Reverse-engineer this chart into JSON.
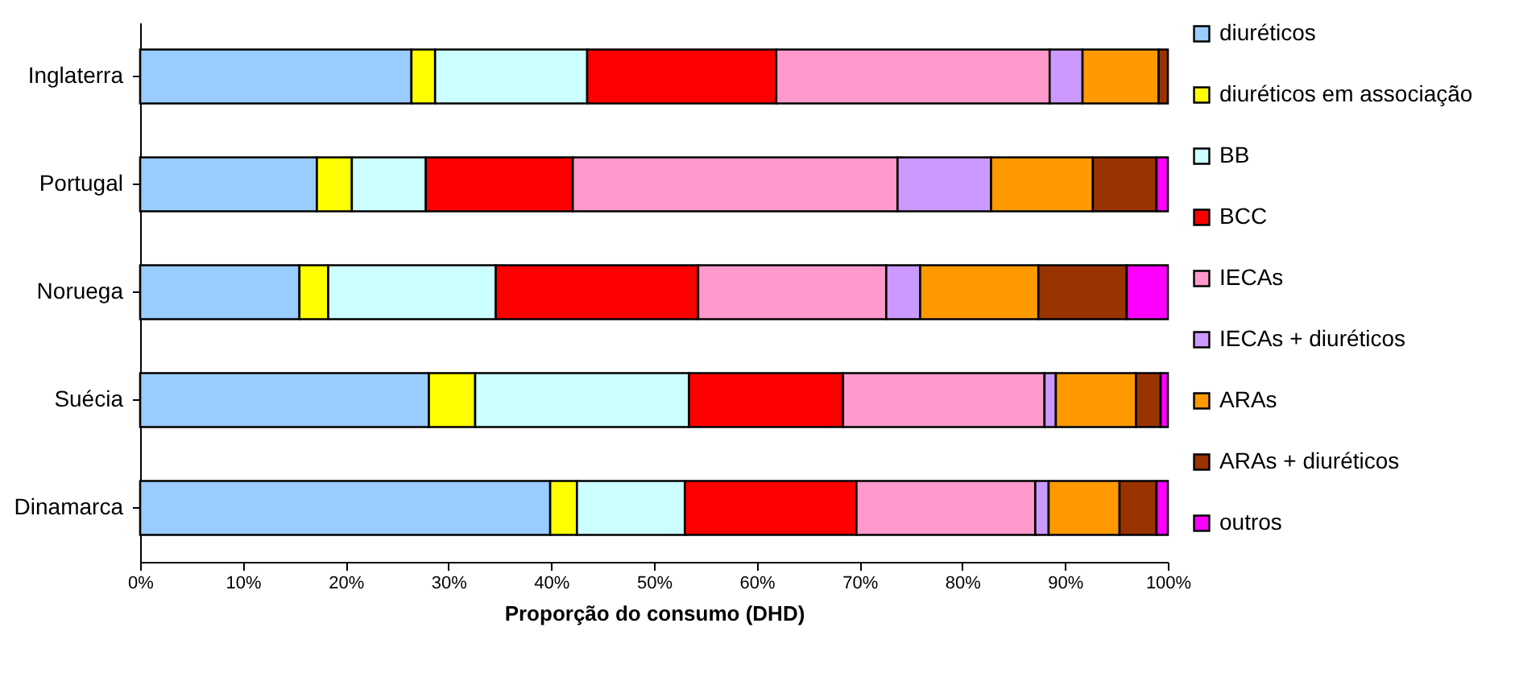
{
  "chart_data": {
    "type": "bar",
    "orientation": "horizontal",
    "stacked": true,
    "xlabel": "Proporção do consumo (DHD)",
    "categories": [
      "Inglaterra",
      "Portugal",
      "Noruega",
      "Suécia",
      "Dinamarca"
    ],
    "series": [
      {
        "name": "diuréticos",
        "color": "#99ccff",
        "values": [
          26.4,
          17.2,
          15.5,
          28.1,
          39.9
        ]
      },
      {
        "name": "diuréticos em associação",
        "color": "#ffff00",
        "values": [
          2.3,
          3.4,
          2.8,
          4.5,
          2.6
        ]
      },
      {
        "name": "BB",
        "color": "#ccffff",
        "values": [
          14.8,
          7.2,
          16.3,
          20.8,
          10.5
        ]
      },
      {
        "name": "BCC",
        "color": "#ff0000",
        "values": [
          18.4,
          14.3,
          19.7,
          15.0,
          16.7
        ]
      },
      {
        "name": "IECAs",
        "color": "#ff99cc",
        "values": [
          26.6,
          31.6,
          18.3,
          19.6,
          17.4
        ]
      },
      {
        "name": "IECAs + diuréticos",
        "color": "#cc99ff",
        "values": [
          3.2,
          9.1,
          3.3,
          1.1,
          1.3
        ]
      },
      {
        "name": "ARAs",
        "color": "#ff9900",
        "values": [
          7.4,
          9.9,
          11.5,
          7.8,
          6.9
        ]
      },
      {
        "name": "ARAs + diuréticos",
        "color": "#993300",
        "values": [
          0.9,
          6.2,
          8.6,
          2.4,
          3.6
        ]
      },
      {
        "name": "outros",
        "color": "#ff00ff",
        "values": [
          null,
          1.1,
          4.0,
          0.7,
          1.1
        ]
      }
    ],
    "xlim": [
      0,
      100
    ],
    "xticks": [
      {
        "value": 0,
        "label": "0%"
      },
      {
        "value": 10,
        "label": "10%"
      },
      {
        "value": 20,
        "label": "20%"
      },
      {
        "value": 30,
        "label": "30%"
      },
      {
        "value": 40,
        "label": "40%"
      },
      {
        "value": 50,
        "label": "50%"
      },
      {
        "value": 60,
        "label": "60%"
      },
      {
        "value": 70,
        "label": "70%"
      },
      {
        "value": 80,
        "label": "80%"
      },
      {
        "value": 90,
        "label": "90%"
      },
      {
        "value": 100,
        "label": "100%"
      }
    ],
    "grid": false,
    "legend": "right"
  }
}
